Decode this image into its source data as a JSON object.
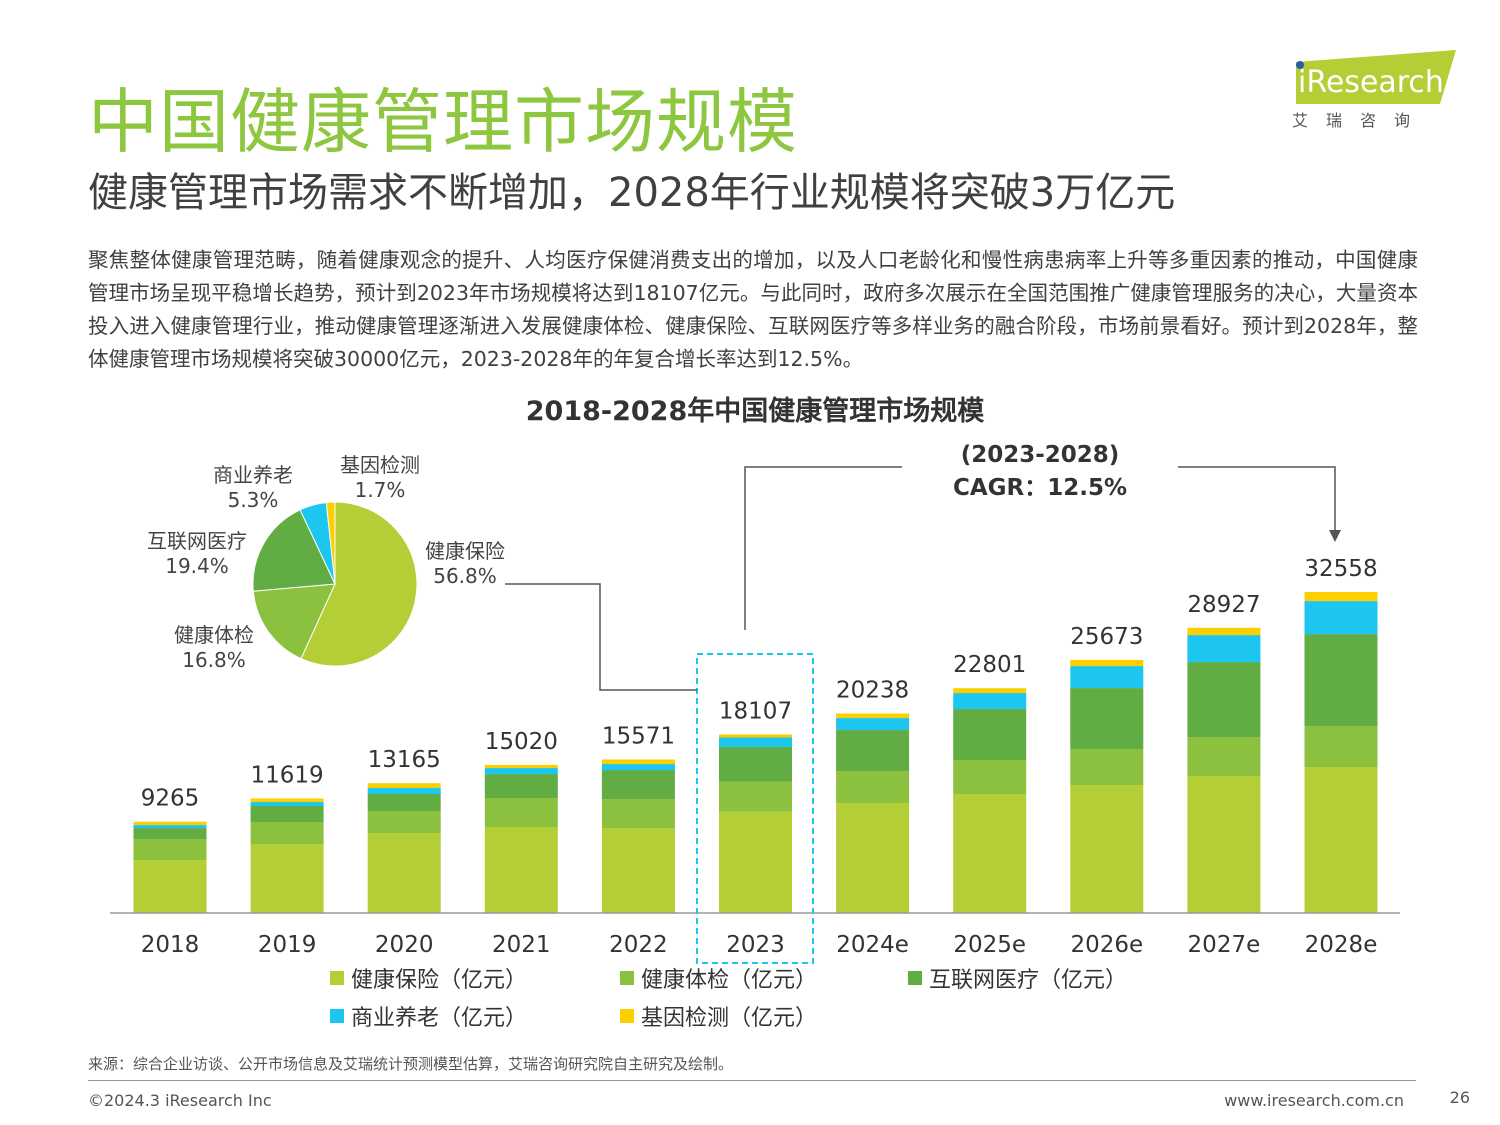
{
  "title": "中国健康管理市场规模",
  "subtitle": "健康管理市场需求不断增加，2028年行业规模将突破3万亿元",
  "body": "聚焦整体健康管理范畴，随着健康观念的提升、人均医疗保健消费支出的增加，以及人口老龄化和慢性病患病率上升等多重因素的推动，中国健康管理市场呈现平稳增长趋势，预计到2023年市场规模将达到18107亿元。与此同时，政府多次展示在全国范围推广健康管理服务的决心，大量资本投入进入健康管理行业，推动健康管理逐渐进入发展健康体检、健康保险、互联网医疗等多样业务的融合阶段，市场前景看好。预计到2028年，整体健康管理市场规模将突破30000亿元，2023-2028年的年复合增长率达到12.5%。",
  "logo": {
    "brand": "iResearch",
    "cn": "艾 瑞 咨 询"
  },
  "source": "来源：综合企业访谈、公开市场信息及艾瑞统计预测模型估算，艾瑞咨询研究院自主研究及绘制。",
  "footer": {
    "copyright": "©2024.3 iResearch Inc",
    "website": "www.iresearch.com.cn",
    "page": "26"
  },
  "chart_data": [
    {
      "type": "bar",
      "title": "2018-2028年中国健康管理市场规模",
      "stacked": true,
      "categories": [
        "2018",
        "2019",
        "2020",
        "2021",
        "2022",
        "2023",
        "2024e",
        "2025e",
        "2026e",
        "2027e",
        "2028e"
      ],
      "totals": [
        9265,
        11619,
        13165,
        15020,
        15571,
        18107,
        20238,
        22801,
        25673,
        28927,
        32558
      ],
      "series": [
        {
          "name": "健康保险（亿元）",
          "color": "#b3cf35",
          "values": [
            5374,
            6997,
            8112,
            8720,
            8619,
            10285,
            11154,
            12067,
            12979,
            13892,
            14804
          ]
        },
        {
          "name": "健康体检（亿元）",
          "color": "#8cc13f",
          "values": [
            2129,
            2231,
            2231,
            2940,
            2940,
            3042,
            3245,
            3448,
            3650,
            3955,
            4157
          ]
        },
        {
          "name": "互联网医疗（亿元）",
          "color": "#62ac44",
          "values": [
            1115,
            1622,
            1724,
            2434,
            2940,
            3513,
            4157,
            5171,
            6185,
            7605,
            9329
          ]
        },
        {
          "name": "商业养老（亿元）",
          "color": "#1dc6ef",
          "values": [
            304,
            406,
            608,
            608,
            608,
            960,
            1217,
            1622,
            2231,
            2738,
            3346
          ]
        },
        {
          "name": "基因检测（亿元）",
          "color": "#fcd000",
          "values": [
            343,
            363,
            490,
            318,
            464,
            307,
            465,
            493,
            628,
            737,
            922
          ]
        }
      ],
      "annotation": {
        "line1": "(2023-2028)",
        "line2": "CAGR：12.5%"
      },
      "legend": "bottom"
    },
    {
      "type": "pie",
      "year": "2023",
      "slices": [
        {
          "name": "健康保险",
          "value": 56.8,
          "label": "56.8%",
          "color": "#b3cf35"
        },
        {
          "name": "健康体检",
          "value": 16.8,
          "label": "16.8%",
          "color": "#8cc13f"
        },
        {
          "name": "互联网医疗",
          "value": 19.4,
          "label": "19.4%",
          "color": "#62ac44"
        },
        {
          "name": "商业养老",
          "value": 5.3,
          "label": "5.3%",
          "color": "#1dc6ef"
        },
        {
          "name": "基因检测",
          "value": 1.7,
          "label": "1.7%",
          "color": "#fcd000"
        }
      ]
    }
  ]
}
